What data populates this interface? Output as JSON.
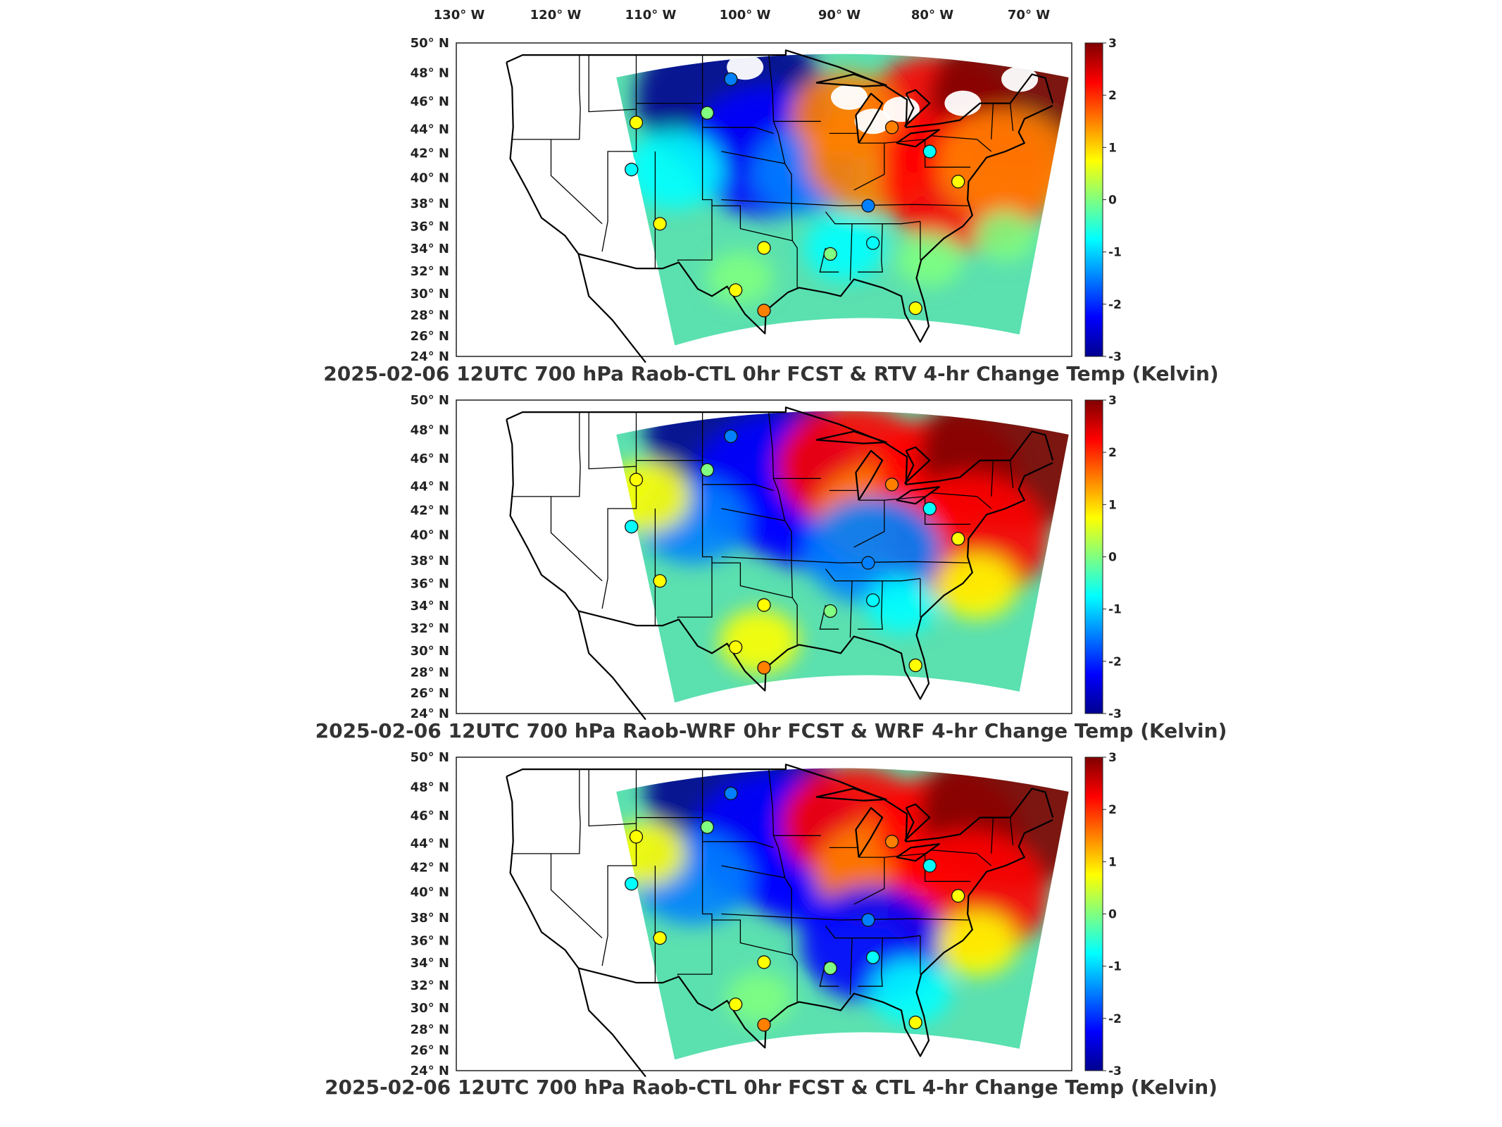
{
  "top_axis": {
    "lon_labels": [
      "130° W",
      "120° W",
      "110° W",
      "100° W",
      "90° W",
      "80° W",
      "70° W"
    ]
  },
  "lat_labels": [
    "50° N",
    "48° N",
    "46° N",
    "44° N",
    "42° N",
    "40° N",
    "38° N",
    "36° N",
    "34° N",
    "32° N",
    "30° N",
    "28° N",
    "26° N",
    "24° N"
  ],
  "colorbar": {
    "ticks": [
      "3",
      "2",
      "1",
      "0",
      "-1",
      "-2",
      "-3"
    ],
    "range": [
      -3,
      3
    ],
    "colormap": [
      "#00008f",
      "#0000ff",
      "#0080ff",
      "#00ffff",
      "#80ff80",
      "#ffff00",
      "#ff8000",
      "#ff0000",
      "#800000"
    ]
  },
  "panels": [
    {
      "title": "2025-02-06 12UTC 700 hPa Raob-CTL 0hr FCST & RTV 4-hr Change Temp (Kelvin)",
      "missing_data": true
    },
    {
      "title": "2025-02-06 12UTC 700 hPa Raob-WRF 0hr FCST & WRF 4-hr Change Temp (Kelvin)",
      "missing_data": false
    },
    {
      "title": "2025-02-06 12UTC 700 hPa Raob-CTL 0hr FCST & CTL 4-hr Change Temp (Kelvin)",
      "missing_data": false
    }
  ],
  "chart_data": {
    "type": "heatmap",
    "variable": "Temp (Kelvin)",
    "level": "700 hPa",
    "valid_time": "2025-02-06 12UTC",
    "lon_range": [
      -130,
      -65
    ],
    "lat_range": [
      24,
      50
    ],
    "value_range": [
      -3,
      3
    ],
    "raob_stations": [
      {
        "lon": -101.0,
        "lat": 47.0,
        "value": -1.5
      },
      {
        "lon": -103.5,
        "lat": 44.2,
        "value": 0.2
      },
      {
        "lon": -111.0,
        "lat": 43.4,
        "value": 0.8
      },
      {
        "lon": -111.5,
        "lat": 39.5,
        "value": -0.8
      },
      {
        "lon": -108.5,
        "lat": 35.0,
        "value": 0.4
      },
      {
        "lon": -97.5,
        "lat": 33.0,
        "value": 0.5
      },
      {
        "lon": -100.5,
        "lat": 29.5,
        "value": 0.5
      },
      {
        "lon": -97.5,
        "lat": 27.8,
        "value": 1.8
      },
      {
        "lon": -90.5,
        "lat": 32.5,
        "value": 0.0
      },
      {
        "lon": -86.0,
        "lat": 33.4,
        "value": -0.8
      },
      {
        "lon": -86.5,
        "lat": 36.5,
        "value": -1.8
      },
      {
        "lon": -84.0,
        "lat": 43.0,
        "value": 1.8
      },
      {
        "lon": -80.0,
        "lat": 41.0,
        "value": -0.6
      },
      {
        "lon": -77.0,
        "lat": 38.5,
        "value": 1.0
      },
      {
        "lon": -81.5,
        "lat": 28.0,
        "value": 0.4
      }
    ],
    "panels": [
      {
        "name": "Raob-CTL 0hr FCST & RTV 4-hr Change",
        "anomalies": [
          {
            "lon": -101.0,
            "lat": 45.5,
            "value": -3.0
          },
          {
            "lon": -97.0,
            "lat": 41.0,
            "value": -2.4
          },
          {
            "lon": -93.0,
            "lat": 39.5,
            "value": -1.2
          },
          {
            "lon": -107.0,
            "lat": 39.5,
            "value": -1.0
          },
          {
            "lon": -86.0,
            "lat": 40.5,
            "value": 1.8
          },
          {
            "lon": -79.0,
            "lat": 44.0,
            "value": 2.2
          },
          {
            "lon": -70.0,
            "lat": 45.5,
            "value": 3.0
          },
          {
            "lon": -76.0,
            "lat": 38.5,
            "value": 2.6
          },
          {
            "lon": -72.0,
            "lat": 40.0,
            "value": 1.8
          },
          {
            "lon": -89.0,
            "lat": 44.0,
            "value": 1.2
          },
          {
            "lon": -100.0,
            "lat": 30.5,
            "value": 0.3
          },
          {
            "lon": -89.0,
            "lat": 33.0,
            "value": -0.6
          },
          {
            "lon": -80.0,
            "lat": 32.0,
            "value": -0.3
          },
          {
            "lon": -72.0,
            "lat": 34.0,
            "value": 0.2
          }
        ]
      },
      {
        "name": "Raob-WRF 0hr FCST & WRF 4-hr Change",
        "anomalies": [
          {
            "lon": -100.0,
            "lat": 47.0,
            "value": -3.0
          },
          {
            "lon": -96.0,
            "lat": 43.0,
            "value": -2.6
          },
          {
            "lon": -92.0,
            "lat": 41.0,
            "value": -2.2
          },
          {
            "lon": -105.0,
            "lat": 40.0,
            "value": -1.2
          },
          {
            "lon": -88.0,
            "lat": 44.5,
            "value": 2.2
          },
          {
            "lon": -85.5,
            "lat": 40.5,
            "value": 1.6
          },
          {
            "lon": -78.0,
            "lat": 44.0,
            "value": 2.0
          },
          {
            "lon": -71.0,
            "lat": 45.5,
            "value": 3.0
          },
          {
            "lon": -76.0,
            "lat": 38.5,
            "value": 2.4
          },
          {
            "lon": -86.0,
            "lat": 37.5,
            "value": -1.8
          },
          {
            "lon": -110.0,
            "lat": 42.0,
            "value": 0.8
          },
          {
            "lon": -98.0,
            "lat": 30.0,
            "value": 0.6
          },
          {
            "lon": -75.0,
            "lat": 34.5,
            "value": 0.6
          },
          {
            "lon": -83.0,
            "lat": 33.0,
            "value": -0.4
          }
        ]
      },
      {
        "name": "Raob-CTL 0hr FCST & CTL 4-hr Change",
        "anomalies": [
          {
            "lon": -100.0,
            "lat": 47.0,
            "value": -3.0
          },
          {
            "lon": -96.0,
            "lat": 43.0,
            "value": -2.6
          },
          {
            "lon": -92.0,
            "lat": 41.0,
            "value": -2.2
          },
          {
            "lon": -105.0,
            "lat": 40.0,
            "value": -1.4
          },
          {
            "lon": -88.0,
            "lat": 44.5,
            "value": 2.0
          },
          {
            "lon": -85.5,
            "lat": 40.5,
            "value": 1.6
          },
          {
            "lon": -78.0,
            "lat": 44.0,
            "value": 2.0
          },
          {
            "lon": -71.0,
            "lat": 45.5,
            "value": 3.0
          },
          {
            "lon": -76.0,
            "lat": 38.5,
            "value": 2.4
          },
          {
            "lon": -86.0,
            "lat": 34.5,
            "value": -2.0
          },
          {
            "lon": -110.0,
            "lat": 42.0,
            "value": 0.6
          },
          {
            "lon": -98.0,
            "lat": 30.0,
            "value": 0.3
          },
          {
            "lon": -75.0,
            "lat": 34.5,
            "value": 0.6
          },
          {
            "lon": -82.0,
            "lat": 30.5,
            "value": -0.6
          }
        ]
      }
    ]
  }
}
